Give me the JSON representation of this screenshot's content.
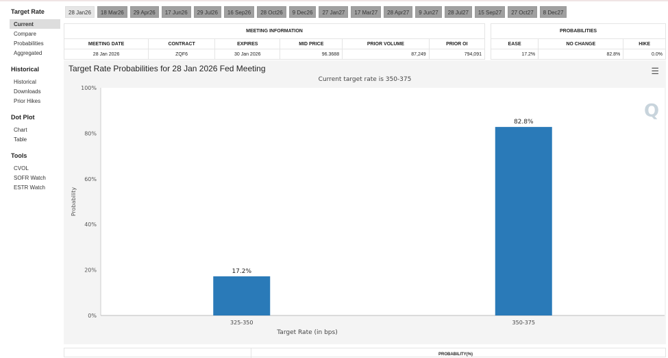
{
  "sidebar": {
    "sections": [
      {
        "title": "Target Rate",
        "items": [
          "Current",
          "Compare",
          "Probabilities",
          "Aggregated"
        ]
      },
      {
        "title": "Historical",
        "items": [
          "Historical",
          "Downloads",
          "Prior Hikes"
        ]
      },
      {
        "title": "Dot Plot",
        "items": [
          "Chart",
          "Table"
        ]
      },
      {
        "title": "Tools",
        "items": [
          "CVOL",
          "SOFR Watch",
          "ESTR Watch"
        ]
      }
    ],
    "active": "Current"
  },
  "tabs": [
    "28 Jan26",
    "18 Mar26",
    "29 Apr26",
    "17 Jun26",
    "29 Jul26",
    "16 Sep26",
    "28 Oct26",
    "9 Dec26",
    "27 Jan27",
    "17 Mar27",
    "28 Apr27",
    "9 Jun27",
    "28 Jul27",
    "15 Sep27",
    "27 Oct27",
    "8 Dec27"
  ],
  "meeting_info": {
    "title": "MEETING INFORMATION",
    "headers": [
      "MEETING DATE",
      "CONTRACT",
      "EXPIRES",
      "MID PRICE",
      "PRIOR VOLUME",
      "PRIOR OI"
    ],
    "row": [
      "28 Jan 2026",
      "ZQF6",
      "30 Jan 2026",
      "96.3688",
      "87,249",
      "794,091"
    ]
  },
  "probabilities": {
    "title": "PROBABILITIES",
    "headers": [
      "EASE",
      "NO CHANGE",
      "HIKE"
    ],
    "row": [
      "17.2%",
      "82.8%",
      "0.0%"
    ]
  },
  "chart": {
    "menu_icon": "hamburger-icon"
  },
  "chart_data": {
    "type": "bar",
    "title": "Target Rate Probabilities for 28 Jan 2026 Fed Meeting",
    "subtitle": "Current target rate is 350-375",
    "xlabel": "Target Rate (in bps)",
    "ylabel": "Probability",
    "categories": [
      "325-350",
      "350-375"
    ],
    "values": [
      17.2,
      82.8
    ],
    "data_labels": [
      "17.2%",
      "82.8%"
    ],
    "ylim": [
      0,
      100
    ],
    "yticks": [
      "0%",
      "20%",
      "40%",
      "60%",
      "80%",
      "100%"
    ],
    "color": "#2a7ab8",
    "grid": false
  },
  "bottom_table": {
    "header": "PROBABILITY(%)"
  }
}
